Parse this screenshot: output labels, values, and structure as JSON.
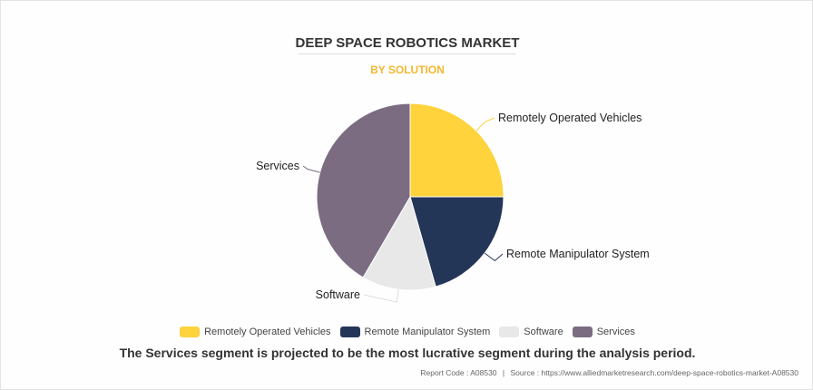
{
  "chart_data": {
    "type": "pie",
    "title": "DEEP SPACE ROBOTICS MARKET",
    "subtitle": "BY SOLUTION",
    "categories": [
      "Remotely Operated Vehicles",
      "Remote Manipulator System",
      "Software",
      "Services"
    ],
    "values": [
      25.0,
      20.6,
      12.8,
      41.6
    ],
    "colors": [
      "#fed33b",
      "#243658",
      "#e8e8e8",
      "#7b6c82"
    ],
    "legend_position": "bottom"
  },
  "caption": "The Services segment is projected to be the most lucrative segment during the analysis period.",
  "footer": {
    "report_code": "Report Code : A08530",
    "separator": "|",
    "source": "Source : https://www.alliedmarketresearch.com/deep-space-robotics-market-A08530"
  }
}
